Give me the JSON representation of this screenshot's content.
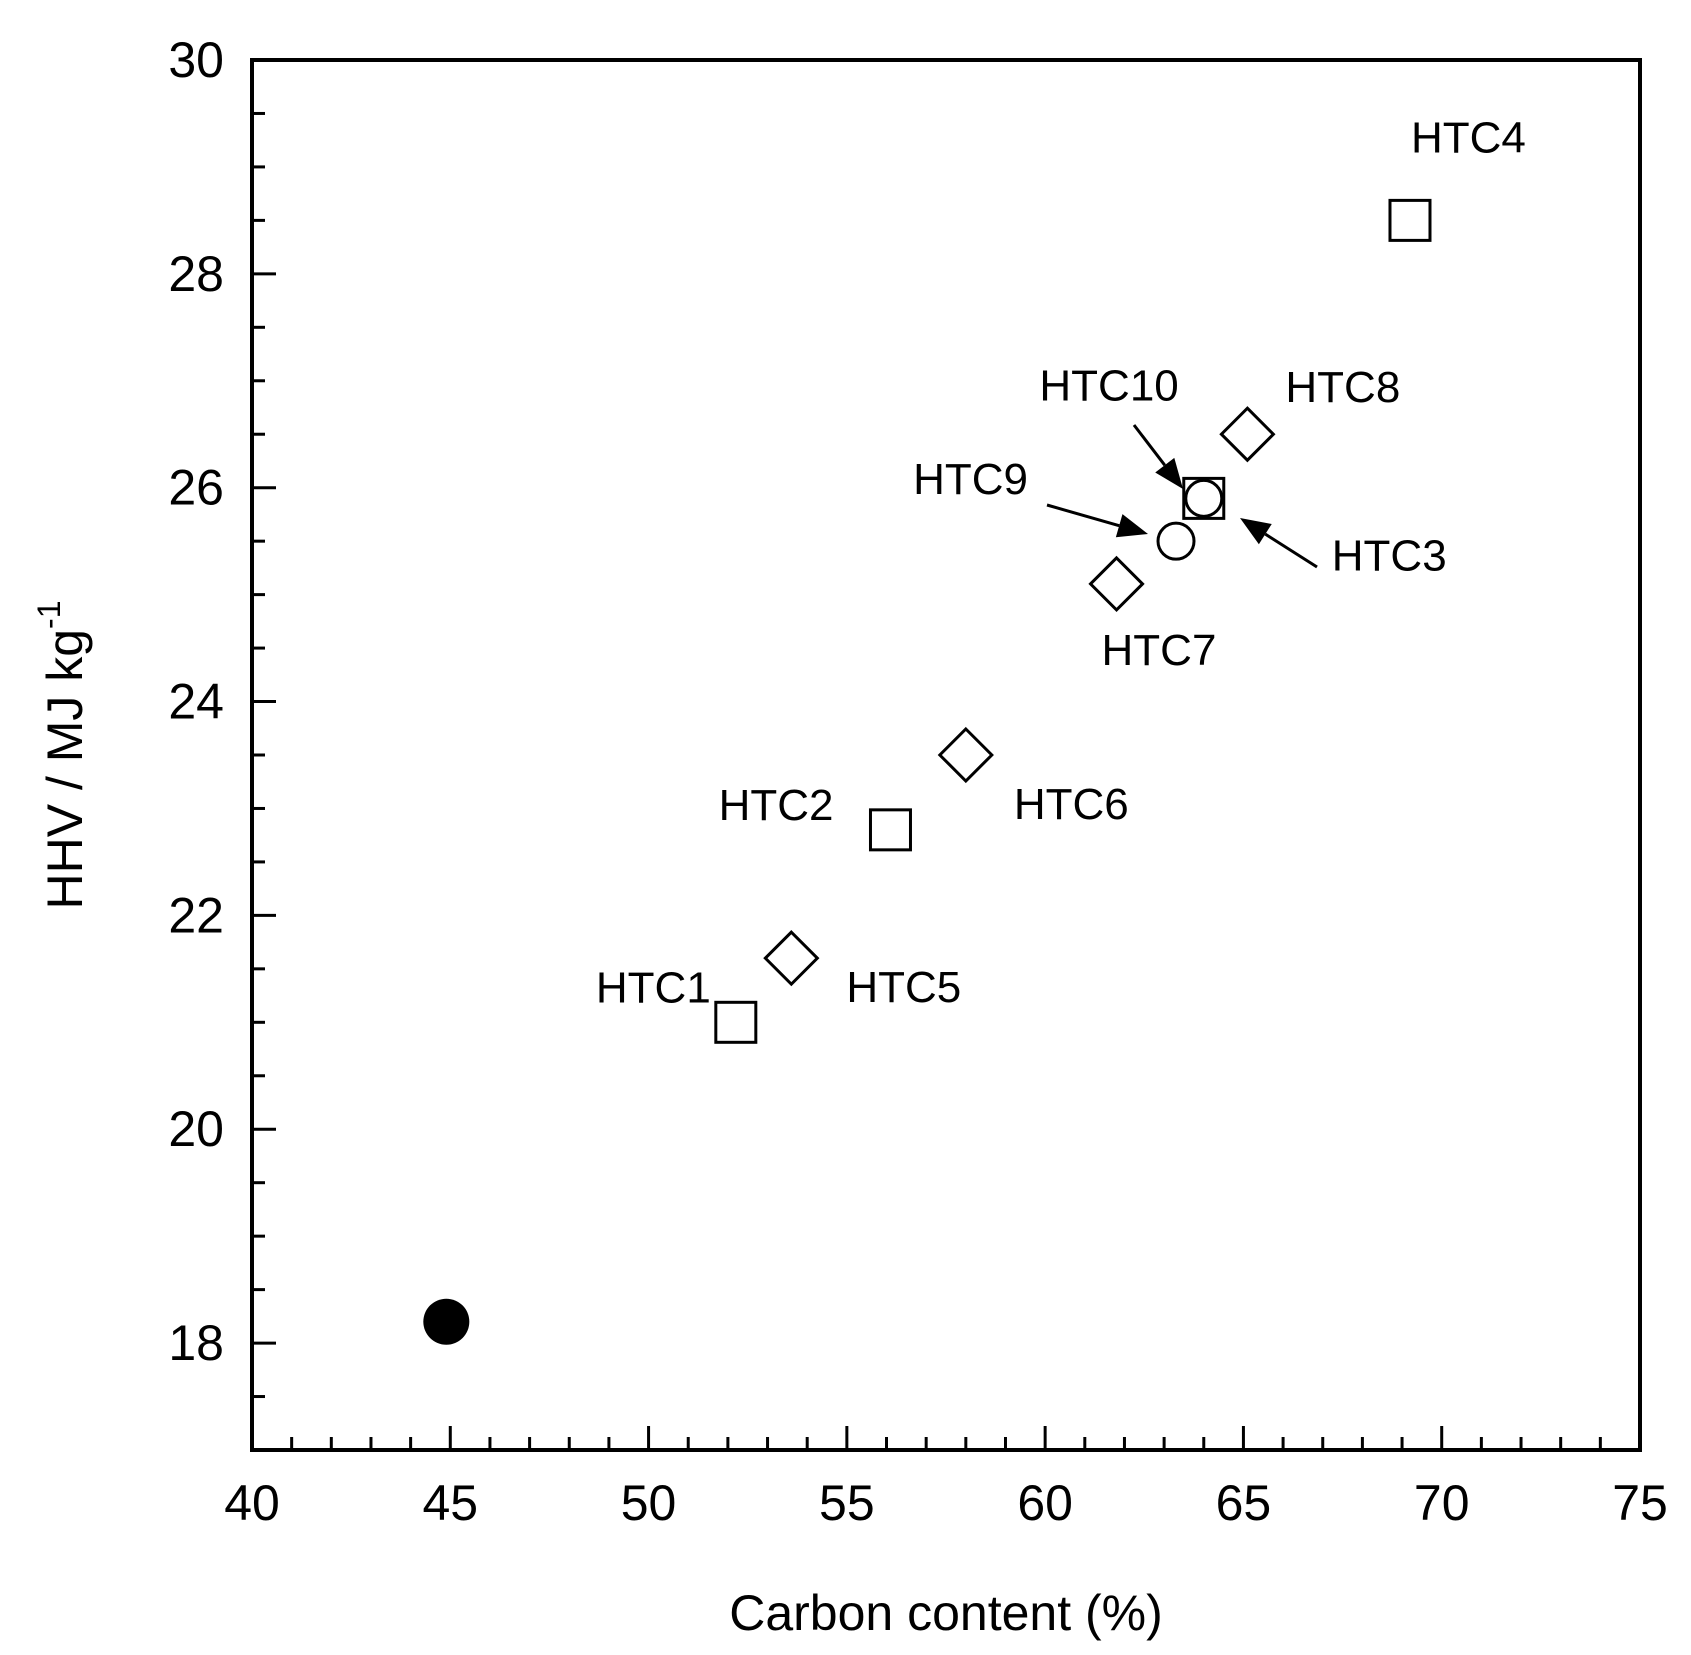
{
  "chart_data": {
    "type": "scatter",
    "xlabel": "Carbon content (%)",
    "ylabel": "HHV / MJ kg",
    "ylabel_sup": "-1",
    "xlim": [
      40,
      75
    ],
    "ylim": [
      17,
      30
    ],
    "xticks": [
      40,
      45,
      50,
      55,
      60,
      65,
      70,
      75
    ],
    "yticks": [
      18,
      20,
      22,
      24,
      26,
      28,
      30
    ],
    "grid": false,
    "points": [
      {
        "label": "",
        "x": 44.9,
        "y": 18.2,
        "marker": "filled-circle"
      },
      {
        "label": "HTC1",
        "x": 52.2,
        "y": 21.0,
        "marker": "square"
      },
      {
        "label": "HTC2",
        "x": 56.1,
        "y": 22.8,
        "marker": "square"
      },
      {
        "label": "HTC3",
        "x": 64.0,
        "y": 25.9,
        "marker": "square"
      },
      {
        "label": "HTC4",
        "x": 69.2,
        "y": 28.5,
        "marker": "square"
      },
      {
        "label": "HTC5",
        "x": 53.6,
        "y": 21.6,
        "marker": "diamond"
      },
      {
        "label": "HTC6",
        "x": 58.0,
        "y": 23.5,
        "marker": "diamond"
      },
      {
        "label": "HTC7",
        "x": 61.8,
        "y": 25.1,
        "marker": "diamond"
      },
      {
        "label": "HTC8",
        "x": 65.1,
        "y": 26.5,
        "marker": "diamond"
      },
      {
        "label": "HTC9",
        "x": 63.3,
        "y": 25.5,
        "marker": "circle"
      },
      {
        "label": "HTC10",
        "x": 64.0,
        "y": 25.9,
        "marker": "circle"
      }
    ]
  }
}
